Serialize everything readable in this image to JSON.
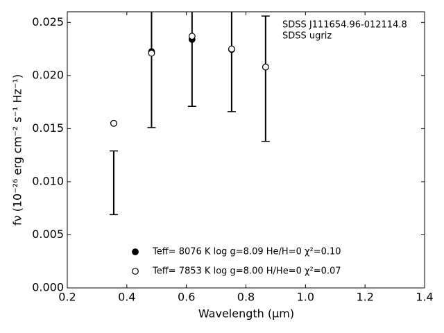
{
  "chart_data": {
    "type": "scatter",
    "xlabel": "Wavelength (μm)",
    "ylabel": "fν (10⁻²⁶ erg cm⁻² s⁻¹ Hz⁻¹)",
    "annotations": [
      "SDSS J111654.96-012114.8",
      "SDSS ugriz"
    ],
    "xlim": [
      0.2,
      1.4
    ],
    "ylim": [
      0,
      0.026
    ],
    "xticks": [
      0.2,
      0.4,
      0.6,
      0.8,
      {
        "value": 1,
        "label": "1.0"
      },
      1.2,
      1.4
    ],
    "yticks": [
      {
        "value": 0,
        "label": "0.000"
      },
      {
        "value": 0.005,
        "label": "0.005"
      },
      {
        "value": 0.01,
        "label": "0.010"
      },
      {
        "value": 0.015,
        "label": "0.015"
      },
      {
        "value": 0.02,
        "label": "0.020"
      },
      {
        "value": 0.025,
        "label": "0.025"
      }
    ],
    "legend": "lower center",
    "observed": {
      "color": "#000000",
      "x": [
        0.356,
        0.483,
        0.619,
        0.752,
        0.866
      ],
      "values": [
        0.0099,
        0.0221,
        0.0234,
        0.0225,
        0.0197
      ],
      "errors": [
        0.003,
        0.007,
        0.0063,
        0.0059,
        0.0059
      ]
    },
    "series": [
      {
        "name": "Teff=  8076 K  log g=8.09  He/H=0  χ²=0.10",
        "color": "#000000",
        "marker": "filled",
        "x": [
          0.356,
          0.483,
          0.619,
          0.752,
          0.866
        ],
        "values": [
          0.0155,
          0.02225,
          0.0234,
          0.02245,
          0.0208
        ]
      },
      {
        "name": "Teff=  7853 K  log g=8.00  H/He=0  χ²=0.07",
        "color": "#000000",
        "marker": "open",
        "x": [
          0.356,
          0.483,
          0.619,
          0.752,
          0.866
        ],
        "values": [
          0.0155,
          0.0221,
          0.0237,
          0.0225,
          0.0208
        ]
      }
    ]
  }
}
